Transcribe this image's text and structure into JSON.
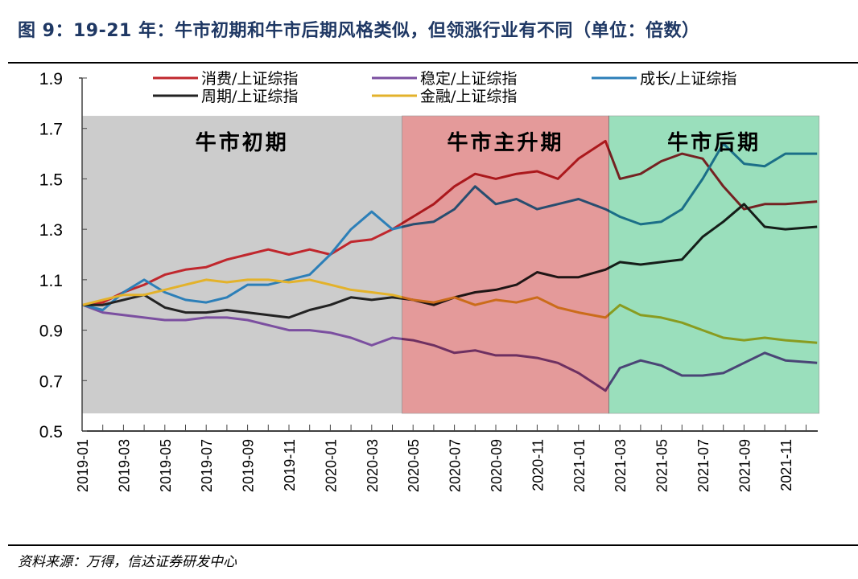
{
  "title": "图 9：19-21 年：牛市初期和牛市后期风格类似，但领涨行业有不同（单位：倍数）",
  "source": "资料来源：万得，信达证券研发中心",
  "chart_data": {
    "type": "line",
    "title": "",
    "xlabel": "",
    "ylabel": "",
    "ylim": [
      0.5,
      1.9
    ],
    "yticks": [
      "0.5",
      "0.7",
      "0.9",
      "1.1",
      "1.3",
      "1.5",
      "1.7",
      "1.9"
    ],
    "xticks": [
      "2019-01",
      "2019-03",
      "2019-05",
      "2019-07",
      "2019-09",
      "2019-11",
      "2020-01",
      "2020-03",
      "2020-05",
      "2020-07",
      "2020-09",
      "2020-11",
      "2021-01",
      "2021-03",
      "2021-05",
      "2021-07",
      "2021-09",
      "2021-11"
    ],
    "xlim": [
      "2019-01-01",
      "2021-12-31"
    ],
    "grid": false,
    "legend_placement": "top",
    "regions": [
      {
        "label": "牛市初期",
        "start": "2019-01-01",
        "end": "2020-04-15",
        "ymin": 0.57,
        "ymax": 1.75,
        "color": "#CCCCCC"
      },
      {
        "label": "牛市主升期",
        "start": "2020-04-15",
        "end": "2021-02-15",
        "ymin": 0.57,
        "ymax": 1.75,
        "color": "#E49A9A"
      },
      {
        "label": "牛市后期",
        "start": "2021-02-15",
        "end": "2021-12-20",
        "ymin": 0.57,
        "ymax": 1.75,
        "color": "#9ADFBC"
      }
    ],
    "x": [
      "2019-01-02",
      "2019-02-01",
      "2019-03-01",
      "2019-04-01",
      "2019-05-01",
      "2019-06-01",
      "2019-07-01",
      "2019-08-01",
      "2019-09-01",
      "2019-10-01",
      "2019-11-01",
      "2019-12-01",
      "2020-01-01",
      "2020-02-01",
      "2020-03-01",
      "2020-04-01",
      "2020-05-01",
      "2020-06-01",
      "2020-07-01",
      "2020-08-01",
      "2020-09-01",
      "2020-10-01",
      "2020-11-01",
      "2020-12-01",
      "2021-01-01",
      "2021-02-10",
      "2021-03-01",
      "2021-04-01",
      "2021-05-01",
      "2021-06-01",
      "2021-07-01",
      "2021-08-01",
      "2021-09-01",
      "2021-10-01",
      "2021-11-01",
      "2021-12-17"
    ],
    "series": [
      {
        "name": "消费/上证综指",
        "color": "#C0272D",
        "values": [
          1.0,
          1.01,
          1.05,
          1.08,
          1.12,
          1.14,
          1.15,
          1.18,
          1.2,
          1.22,
          1.2,
          1.22,
          1.2,
          1.25,
          1.26,
          1.3,
          1.35,
          1.4,
          1.47,
          1.52,
          1.5,
          1.52,
          1.53,
          1.5,
          1.58,
          1.65,
          1.5,
          1.52,
          1.57,
          1.6,
          1.58,
          1.47,
          1.38,
          1.4,
          1.4,
          1.41
        ]
      },
      {
        "name": "稳定/上证综指",
        "color": "#7B4FA0",
        "values": [
          1.0,
          0.97,
          0.96,
          0.95,
          0.94,
          0.94,
          0.95,
          0.95,
          0.94,
          0.92,
          0.9,
          0.9,
          0.89,
          0.87,
          0.84,
          0.87,
          0.86,
          0.84,
          0.81,
          0.82,
          0.8,
          0.8,
          0.79,
          0.77,
          0.73,
          0.66,
          0.75,
          0.78,
          0.76,
          0.72,
          0.72,
          0.73,
          0.77,
          0.81,
          0.78,
          0.77
        ]
      },
      {
        "name": "成长/上证综指",
        "color": "#2C7FB8",
        "values": [
          1.0,
          0.98,
          1.05,
          1.1,
          1.05,
          1.02,
          1.01,
          1.03,
          1.08,
          1.08,
          1.1,
          1.12,
          1.2,
          1.3,
          1.37,
          1.3,
          1.32,
          1.33,
          1.38,
          1.47,
          1.4,
          1.42,
          1.38,
          1.4,
          1.42,
          1.38,
          1.35,
          1.32,
          1.33,
          1.38,
          1.5,
          1.64,
          1.56,
          1.55,
          1.6,
          1.6
        ]
      },
      {
        "name": "周期/上证综指",
        "color": "#222222",
        "values": [
          1.0,
          1.0,
          1.02,
          1.04,
          0.99,
          0.97,
          0.97,
          0.98,
          0.97,
          0.96,
          0.95,
          0.98,
          1.0,
          1.03,
          1.02,
          1.03,
          1.02,
          1.0,
          1.03,
          1.05,
          1.06,
          1.08,
          1.13,
          1.11,
          1.11,
          1.14,
          1.17,
          1.16,
          1.17,
          1.18,
          1.27,
          1.33,
          1.4,
          1.31,
          1.3,
          1.31
        ]
      },
      {
        "name": "金融/上证综指",
        "color": "#E3B22B",
        "values": [
          1.0,
          1.02,
          1.04,
          1.04,
          1.06,
          1.08,
          1.1,
          1.09,
          1.1,
          1.1,
          1.09,
          1.1,
          1.08,
          1.06,
          1.05,
          1.04,
          1.02,
          1.01,
          1.03,
          1.0,
          1.02,
          1.01,
          1.03,
          0.99,
          0.97,
          0.95,
          1.0,
          0.96,
          0.95,
          0.93,
          0.9,
          0.87,
          0.86,
          0.87,
          0.86,
          0.85
        ]
      }
    ]
  }
}
